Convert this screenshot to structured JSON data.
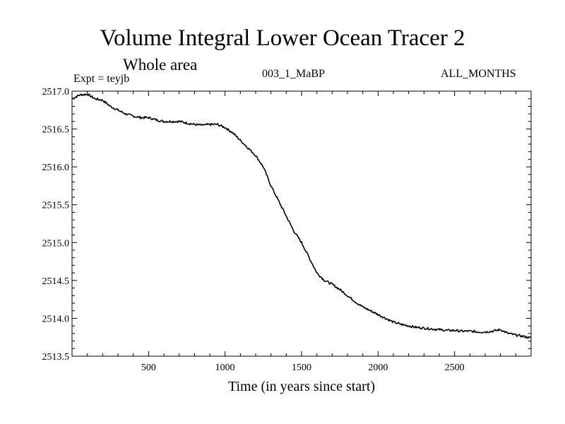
{
  "chart_data": {
    "type": "line",
    "title": "Volume Integral Lower Ocean Tracer 2",
    "subtitle": "Whole area",
    "annotations": {
      "left": "Expt = teyjb",
      "center": "003_1_MaBP",
      "right": "ALL_MONTHS"
    },
    "xlabel": "Time (in years since start)",
    "ylabel": "",
    "xlim": [
      0,
      3000
    ],
    "ylim": [
      2513.5,
      2517.0
    ],
    "xticks": [
      500,
      1000,
      1500,
      2000,
      2500
    ],
    "xtick_labels": [
      "500",
      "1000",
      "1500",
      "2000",
      "2500"
    ],
    "yticks": [
      2513.5,
      2514.0,
      2514.5,
      2515.0,
      2515.5,
      2516.0,
      2516.5,
      2517.0
    ],
    "ytick_labels": [
      "2513.5",
      "2514.0",
      "2514.5",
      "2515.0",
      "2515.5",
      "2516.0",
      "2516.5",
      "2517.0"
    ],
    "grid": false,
    "series": [
      {
        "name": "Lower Ocean Tracer 2",
        "color": "#000000",
        "x": [
          0,
          50,
          100,
          150,
          200,
          250,
          300,
          350,
          400,
          450,
          500,
          550,
          600,
          650,
          700,
          750,
          800,
          850,
          900,
          950,
          1000,
          1050,
          1100,
          1150,
          1200,
          1250,
          1300,
          1350,
          1400,
          1450,
          1500,
          1550,
          1600,
          1650,
          1700,
          1750,
          1800,
          1850,
          1900,
          1950,
          2000,
          2050,
          2100,
          2150,
          2200,
          2250,
          2300,
          2350,
          2400,
          2450,
          2500,
          2550,
          2600,
          2650,
          2700,
          2750,
          2800,
          2850,
          2900,
          2950,
          3000
        ],
        "y": [
          2516.9,
          2516.95,
          2516.96,
          2516.9,
          2516.88,
          2516.8,
          2516.75,
          2516.7,
          2516.67,
          2516.65,
          2516.65,
          2516.62,
          2516.6,
          2516.6,
          2516.6,
          2516.58,
          2516.56,
          2516.55,
          2516.56,
          2516.56,
          2516.52,
          2516.45,
          2516.35,
          2516.25,
          2516.15,
          2516.0,
          2515.75,
          2515.55,
          2515.35,
          2515.15,
          2515.0,
          2514.8,
          2514.6,
          2514.5,
          2514.45,
          2514.38,
          2514.3,
          2514.22,
          2514.15,
          2514.1,
          2514.05,
          2514.0,
          2513.95,
          2513.92,
          2513.9,
          2513.88,
          2513.87,
          2513.86,
          2513.85,
          2513.84,
          2513.84,
          2513.83,
          2513.83,
          2513.82,
          2513.82,
          2513.83,
          2513.85,
          2513.8,
          2513.78,
          2513.76,
          2513.74
        ]
      }
    ]
  }
}
